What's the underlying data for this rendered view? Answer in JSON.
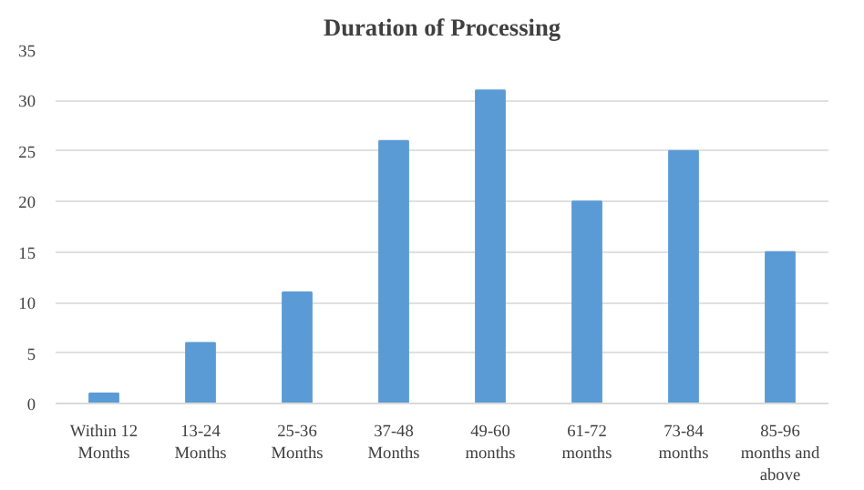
{
  "chart_data": {
    "type": "bar",
    "title": "Duration of Processing",
    "categories": [
      "Within 12 Months",
      "13-24 Months",
      "25-36 Months",
      "37-48 Months",
      "49-60 months",
      "61-72 months",
      "73-84 months",
      "85-96 months and above"
    ],
    "values": [
      1,
      6,
      11,
      26,
      31,
      20,
      25,
      15
    ],
    "color": "#5b9bd5",
    "ylim": [
      0,
      35
    ],
    "yticks": [
      0,
      5,
      10,
      15,
      20,
      25,
      30,
      35
    ],
    "grid": "y"
  }
}
